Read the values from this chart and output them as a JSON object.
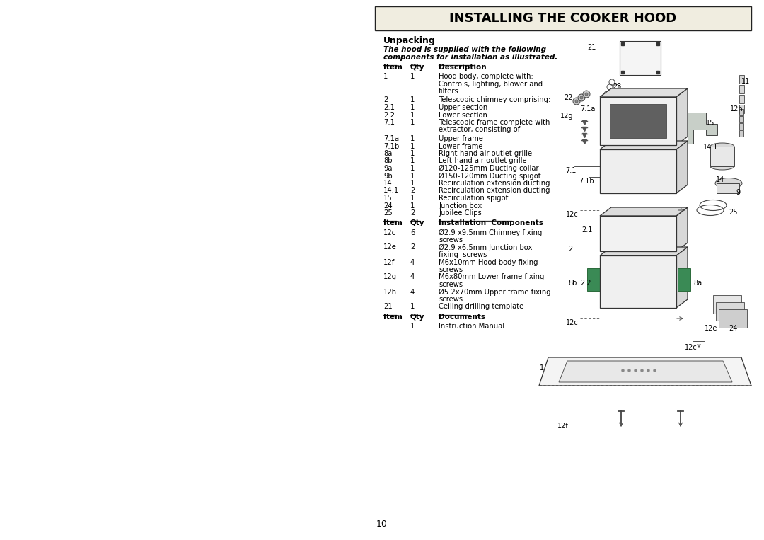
{
  "bg_color": "#ffffff",
  "title": "INSTALLING THE COOKER HOOD",
  "unpacking_heading": "Unpacking",
  "intro_line1": "The hood is supplied with the following",
  "intro_line2": "components for installation as illustrated.",
  "col_item": "Item",
  "col_qty": "Qty",
  "col_desc1": "Description",
  "col_desc2": "Installation  Components",
  "col_desc3": "Documents",
  "desc_items": [
    [
      "1",
      "1",
      "Hood body, complete with:\nControls, lighting, blower and\nfilters"
    ],
    [
      "2",
      "1",
      "Telescopic chimney comprising:"
    ],
    [
      "2.1",
      "1",
      "Upper section"
    ],
    [
      "2.2",
      "1",
      "Lower section"
    ],
    [
      "7.1",
      "1",
      "Telescopic frame complete with\nextractor, consisting of:"
    ],
    [
      "7.1a",
      "1",
      "Upper frame"
    ],
    [
      "7.1b",
      "1",
      "Lower frame"
    ],
    [
      "8a",
      "1",
      "Right-hand air outlet grille"
    ],
    [
      "8b",
      "1",
      "Left-hand air outlet grille"
    ],
    [
      "9a",
      "1",
      "Ø120-125mm Ducting collar"
    ],
    [
      "9b",
      "1",
      "Ø150-120mm Ducting spigot"
    ],
    [
      "14",
      "1",
      "Recirculation extension ducting"
    ],
    [
      "14.1",
      "2",
      "Recirculation extension ducting"
    ],
    [
      "15",
      "1",
      "Recirculation spigot"
    ],
    [
      "24",
      "1",
      "Junction box"
    ],
    [
      "25",
      "2",
      "Jubilee Clips"
    ]
  ],
  "inst_items": [
    [
      "12c",
      "6",
      "Ø2.9 x9.5mm Chimney fixing\nscrews"
    ],
    [
      "12e",
      "2",
      "Ø2.9 x6.5mm Junction box\nfixing  screws"
    ],
    [
      "12f",
      "4",
      "M6x10mm Hood body fixing\nscrews"
    ],
    [
      "12g",
      "4",
      "M6x80mm Lower frame fixing\nscrews"
    ],
    [
      "12h",
      "4",
      "Ø5.2x70mm Upper frame fixing\nscrews"
    ],
    [
      "21",
      "1",
      "Ceiling drilling template"
    ]
  ],
  "doc_items": [
    [
      "",
      "1",
      "Instruction Manual"
    ]
  ],
  "page_number": "10"
}
